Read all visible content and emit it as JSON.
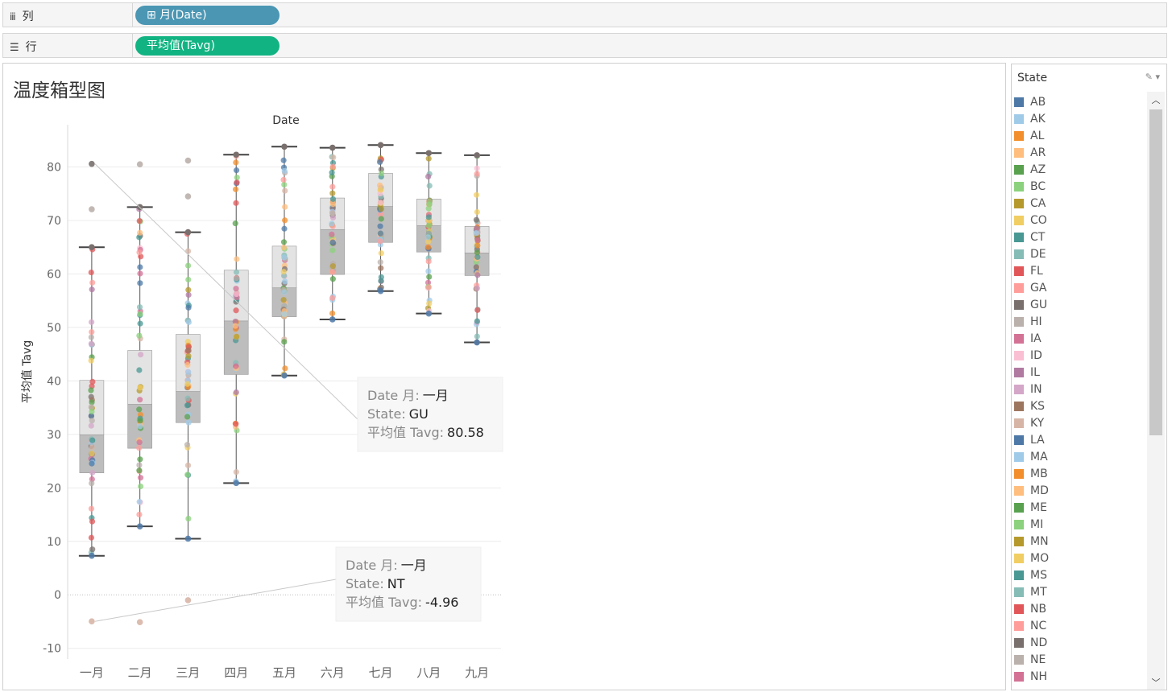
{
  "shelves": {
    "columns": {
      "icon": "columns-shelf-icon",
      "label": "列",
      "pill": "⊞ 月(Date)"
    },
    "rows": {
      "icon": "rows-shelf-icon",
      "label": "行",
      "pill": "平均值(Tavg)"
    }
  },
  "sheet_title": "温度箱型图",
  "chart_data": {
    "type": "box",
    "x_axis_title": "Date",
    "ylabel": "平均值 Tavg",
    "ylim": [
      -12,
      87
    ],
    "yticks": [
      -10,
      0,
      10,
      20,
      30,
      40,
      50,
      60,
      70,
      80
    ],
    "grid": true,
    "categories": [
      "一月",
      "二月",
      "三月",
      "四月",
      "五月",
      "六月",
      "七月",
      "八月",
      "九月"
    ],
    "boxes": [
      {
        "min": 7.3,
        "q1": 22.8,
        "median": 29.9,
        "q3": 40.1,
        "max": 65.0
      },
      {
        "min": 12.8,
        "q1": 27.4,
        "median": 35.6,
        "q3": 45.7,
        "max": 72.5
      },
      {
        "min": 10.5,
        "q1": 32.2,
        "median": 38.0,
        "q3": 48.7,
        "max": 67.8
      },
      {
        "min": 20.9,
        "q1": 41.2,
        "median": 51.2,
        "q3": 60.7,
        "max": 82.3
      },
      {
        "min": 41.0,
        "q1": 52.0,
        "median": 57.4,
        "q3": 65.2,
        "max": 83.8
      },
      {
        "min": 51.5,
        "q1": 59.9,
        "median": 68.3,
        "q3": 74.2,
        "max": 83.6
      },
      {
        "min": 56.8,
        "q1": 65.9,
        "median": 72.6,
        "q3": 78.8,
        "max": 84.1
      },
      {
        "min": 52.6,
        "q1": 64.1,
        "median": 69.0,
        "q3": 74.0,
        "max": 82.6
      },
      {
        "min": 47.2,
        "q1": 59.7,
        "median": 63.9,
        "q3": 68.9,
        "max": 82.2
      }
    ],
    "outliers": [
      {
        "month": "一月",
        "value": 80.58,
        "state": "GU"
      },
      {
        "month": "一月",
        "value": 72.1,
        "state": ""
      },
      {
        "month": "一月",
        "value": -4.96,
        "state": "NT"
      },
      {
        "month": "二月",
        "value": 80.5,
        "state": ""
      },
      {
        "month": "二月",
        "value": -5.1,
        "state": ""
      },
      {
        "month": "三月",
        "value": 81.2,
        "state": ""
      },
      {
        "month": "三月",
        "value": 74.5,
        "state": ""
      },
      {
        "month": "三月",
        "value": -1.0,
        "state": ""
      }
    ],
    "annotations": [
      {
        "target_month": "一月",
        "target_value": 80.58,
        "line1_label": "Date 月:",
        "line1_value": "一月",
        "line2_label": "State:",
        "line2_value": "GU",
        "line3_label": "平均值 Tavg:",
        "line3_value": "80.58"
      },
      {
        "target_month": "一月",
        "target_value": -4.96,
        "line1_label": "Date 月:",
        "line1_value": "一月",
        "line2_label": "State:",
        "line2_value": "NT",
        "line3_label": "平均值 Tavg:",
        "line3_value": "-4.96"
      }
    ]
  },
  "legend": {
    "title": "State",
    "tools_icon": "edit-pencil-icon",
    "items": [
      {
        "label": "AB",
        "color": "#4e79a7"
      },
      {
        "label": "AK",
        "color": "#a0cbe8"
      },
      {
        "label": "AL",
        "color": "#f28e2b"
      },
      {
        "label": "AR",
        "color": "#ffbe7d"
      },
      {
        "label": "AZ",
        "color": "#59a14f"
      },
      {
        "label": "BC",
        "color": "#8cd17d"
      },
      {
        "label": "CA",
        "color": "#b6992d"
      },
      {
        "label": "CO",
        "color": "#f1ce63"
      },
      {
        "label": "CT",
        "color": "#499894"
      },
      {
        "label": "DE",
        "color": "#86bcb6"
      },
      {
        "label": "FL",
        "color": "#e15759"
      },
      {
        "label": "GA",
        "color": "#ff9d9a"
      },
      {
        "label": "GU",
        "color": "#79706e"
      },
      {
        "label": "HI",
        "color": "#bab0ac"
      },
      {
        "label": "IA",
        "color": "#d37295"
      },
      {
        "label": "ID",
        "color": "#fabfd2"
      },
      {
        "label": "IL",
        "color": "#b07aa1"
      },
      {
        "label": "IN",
        "color": "#d4a6c8"
      },
      {
        "label": "KS",
        "color": "#9d7660"
      },
      {
        "label": "KY",
        "color": "#d7b5a6"
      },
      {
        "label": "LA",
        "color": "#4e79a7"
      },
      {
        "label": "MA",
        "color": "#a0cbe8"
      },
      {
        "label": "MB",
        "color": "#f28e2b"
      },
      {
        "label": "MD",
        "color": "#ffbe7d"
      },
      {
        "label": "ME",
        "color": "#59a14f"
      },
      {
        "label": "MI",
        "color": "#8cd17d"
      },
      {
        "label": "MN",
        "color": "#b6992d"
      },
      {
        "label": "MO",
        "color": "#f1ce63"
      },
      {
        "label": "MS",
        "color": "#499894"
      },
      {
        "label": "MT",
        "color": "#86bcb6"
      },
      {
        "label": "NB",
        "color": "#e15759"
      },
      {
        "label": "NC",
        "color": "#ff9d9a"
      },
      {
        "label": "ND",
        "color": "#79706e"
      },
      {
        "label": "NE",
        "color": "#bab0ac"
      },
      {
        "label": "NH",
        "color": "#d37295"
      }
    ]
  }
}
